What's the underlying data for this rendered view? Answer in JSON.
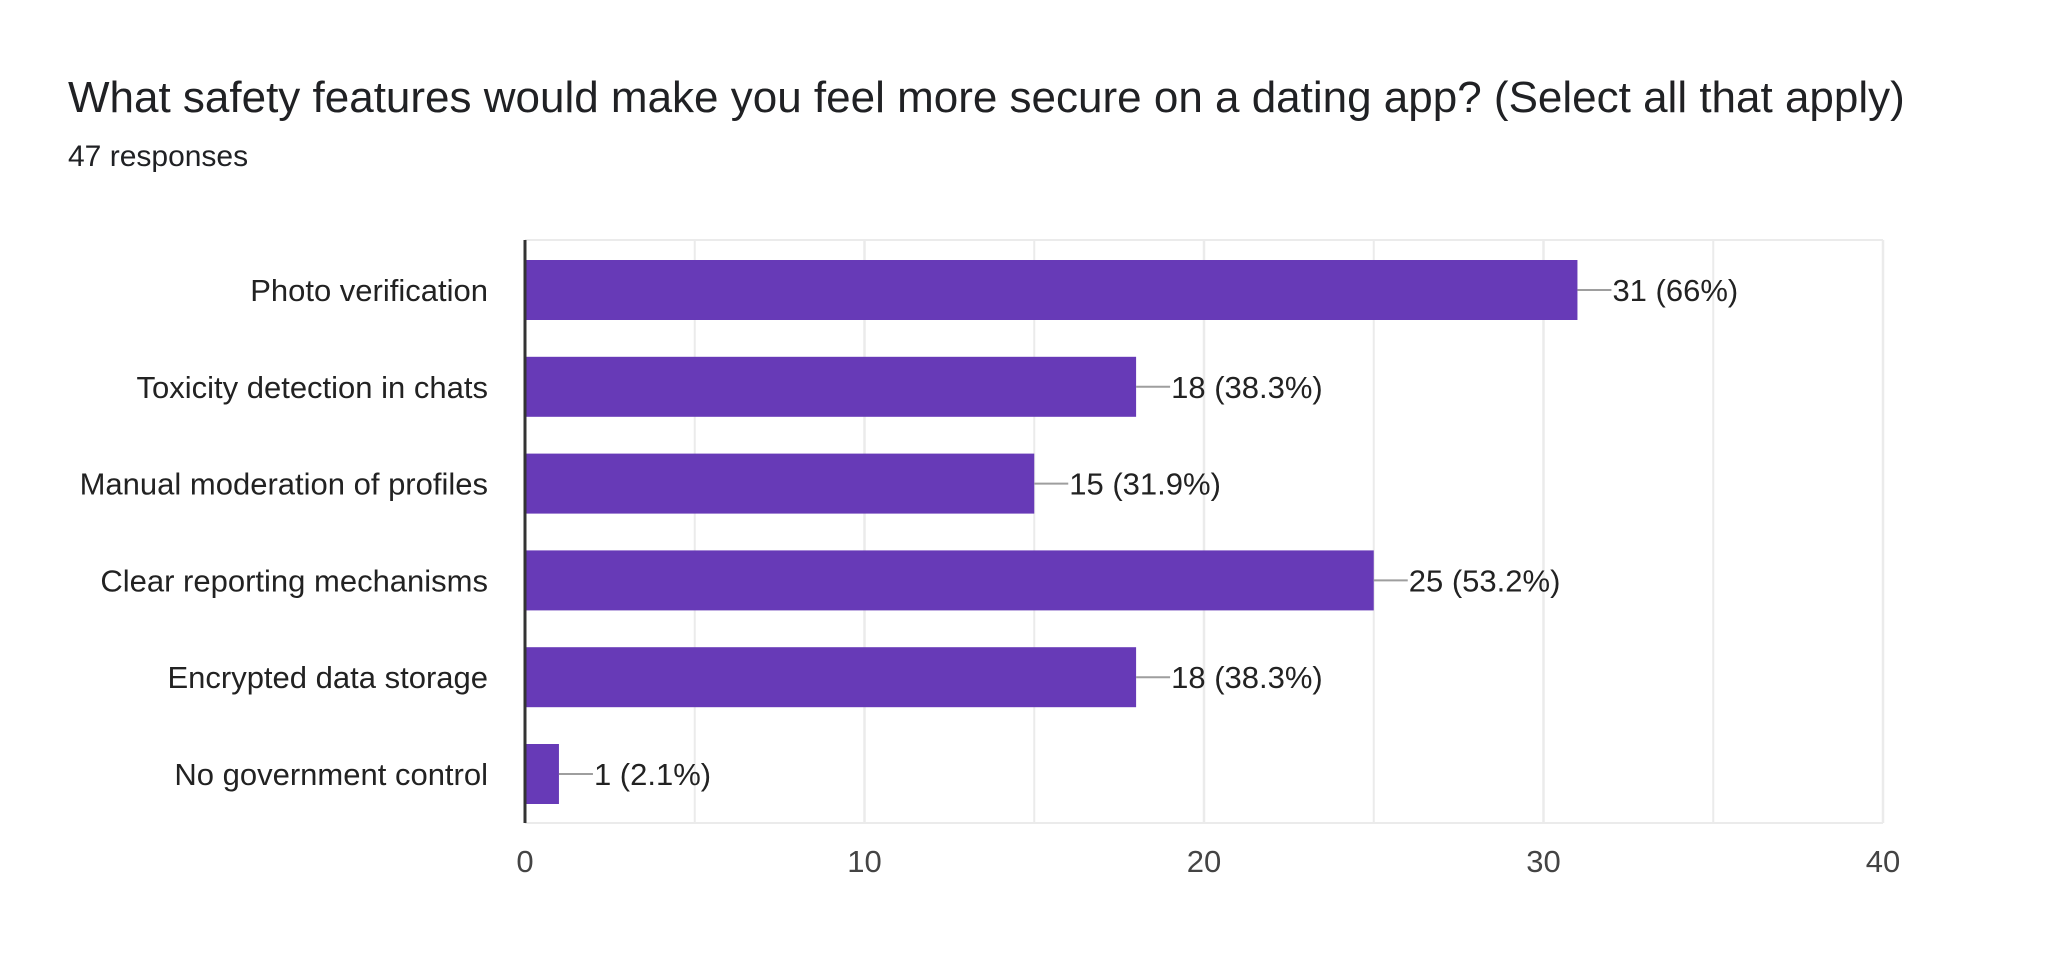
{
  "question": {
    "title": "What safety features would make you feel more secure on a dating app? (Select all that apply)",
    "responses": "47 responses"
  },
  "chart_data": {
    "type": "bar",
    "orientation": "horizontal",
    "categories": [
      "Photo verification",
      "Toxicity detection in chats",
      "Manual moderation of profiles",
      "Clear reporting mechanisms",
      "Encrypted data storage",
      "No government control"
    ],
    "values": [
      31,
      18,
      15,
      25,
      18,
      1
    ],
    "data_labels": [
      "31 (66%)",
      "18 (38.3%)",
      "15 (31.9%)",
      "25 (53.2%)",
      "18 (38.3%)",
      "1 (2.1%)"
    ],
    "xlim": [
      0,
      40
    ],
    "x_ticks": [
      0,
      10,
      20,
      30,
      40
    ],
    "minor_gridlines": [
      5,
      15,
      25,
      35
    ],
    "grid": true,
    "legend": "none",
    "colors": {
      "bar": "#673ab7",
      "grid": "#ebebeb",
      "axis": "#333333",
      "leader": "#9e9e9e"
    }
  }
}
